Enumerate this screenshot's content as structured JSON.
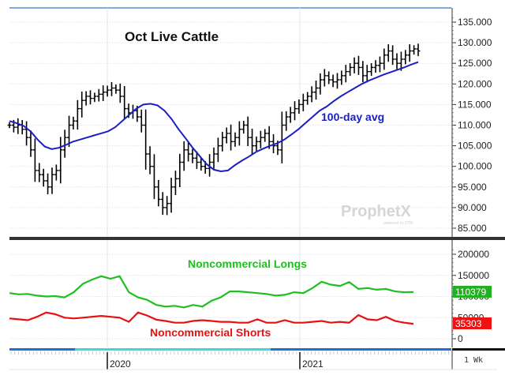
{
  "chart_data": [
    {
      "type": "ohlc",
      "title": "Oct Live Cattle",
      "panel": "price",
      "yaxis": {
        "ticks": [
          135,
          130,
          125,
          120,
          115,
          110,
          105,
          100,
          95,
          90,
          85
        ],
        "tick_labels": [
          "135.000",
          "130.000",
          "125.000",
          "120.000",
          "115.000",
          "110.000",
          "105.000",
          "100.000",
          "95.000",
          "90.000",
          "85.000"
        ],
        "ylim": [
          84,
          136
        ]
      },
      "xaxis": {
        "labels": [
          "2020",
          "2021"
        ],
        "period": "1 Wk"
      },
      "annotations": [
        {
          "text": "100-day avg",
          "color": "#1a1fc4"
        }
      ],
      "watermark": {
        "text": "ProphetX",
        "sub": "powered by DTN"
      },
      "series": [
        {
          "name": "Price (weekly bars)",
          "color": "#000000",
          "approx_close": [
            110,
            109.5,
            110,
            109,
            107,
            104,
            99,
            98,
            96.5,
            95,
            98,
            99,
            104,
            107,
            110,
            111,
            114,
            116,
            117,
            116.5,
            117,
            117.5,
            118,
            118.5,
            119,
            118.5,
            117,
            114,
            113,
            113.5,
            112,
            110,
            103,
            100,
            95,
            92,
            90,
            91,
            95,
            97,
            101,
            104,
            103,
            102,
            101,
            100,
            99.5,
            101,
            103,
            105,
            107,
            108,
            106,
            107,
            109,
            110,
            107,
            105,
            106,
            107,
            108,
            106,
            105,
            104,
            110,
            112,
            113,
            114,
            115,
            116,
            117,
            118,
            119,
            121,
            122,
            121,
            120.5,
            121,
            122,
            123,
            124,
            125,
            124,
            122,
            123,
            124,
            124.5,
            125,
            127,
            128,
            126,
            125,
            126,
            127,
            128,
            128.5,
            128
          ]
        },
        {
          "name": "100-day avg",
          "color": "#1a1fc4",
          "approx_values": [
            111,
            110.5,
            109.8,
            108.5,
            106.5,
            104.8,
            104.2,
            104.5,
            105.2,
            106,
            106.5,
            107,
            107.5,
            108,
            108.5,
            109.5,
            111,
            112.5,
            114,
            115,
            115.2,
            114.8,
            113.5,
            111.5,
            109,
            106.8,
            104.5,
            102.5,
            100.5,
            99.2,
            98.8,
            99,
            100.3,
            101.4,
            102.4,
            103.5,
            104.3,
            105,
            105.6,
            106.5,
            107.7,
            109,
            110.5,
            112,
            113.5,
            114.5,
            115.8,
            117,
            118,
            119,
            120,
            120.8,
            121.5,
            122.2,
            122.8,
            123.4,
            124,
            124.7,
            125.3
          ]
        }
      ]
    },
    {
      "type": "line",
      "panel": "cot",
      "yaxis": {
        "ticks": [
          200000,
          150000,
          100000,
          50000,
          0
        ],
        "tick_labels": [
          "200000",
          "150000",
          "100000",
          "50000",
          "0"
        ],
        "ylim": [
          -10000,
          215000
        ]
      },
      "series": [
        {
          "name": "Noncommercial Longs",
          "color": "#1fbf1f",
          "last_value": 110379,
          "approx_values": [
            108000,
            105000,
            106000,
            102000,
            100000,
            101000,
            98000,
            110000,
            130000,
            140000,
            148000,
            142000,
            148000,
            110000,
            98000,
            92000,
            80000,
            76000,
            78000,
            74000,
            80000,
            76000,
            90000,
            98000,
            112000,
            112000,
            110000,
            108000,
            106000,
            102000,
            104000,
            110000,
            108000,
            120000,
            135000,
            128000,
            125000,
            134000,
            118000,
            120000,
            116000,
            118000,
            112000,
            110000,
            110379
          ]
        },
        {
          "name": "Noncommercial Shorts",
          "color": "#e81010",
          "last_value": 35303,
          "approx_values": [
            48000,
            46000,
            44000,
            52000,
            62000,
            58000,
            50000,
            48000,
            50000,
            52000,
            54000,
            52000,
            50000,
            40000,
            62000,
            55000,
            45000,
            42000,
            38000,
            38000,
            42000,
            44000,
            42000,
            40000,
            40000,
            38000,
            38000,
            46000,
            38000,
            38000,
            44000,
            38000,
            38000,
            40000,
            42000,
            38000,
            40000,
            38000,
            56000,
            46000,
            44000,
            52000,
            42000,
            38000,
            35303
          ]
        }
      ]
    }
  ],
  "header": {
    "title": "Oct Live Cattle"
  },
  "price_panel": {
    "ma_label": "100-day avg",
    "y_ticks": [
      "135.000",
      "130.000",
      "125.000",
      "120.000",
      "115.000",
      "110.000",
      "105.000",
      "100.000",
      "95.000",
      "90.000",
      "85.000"
    ],
    "watermark": "ProphetX",
    "watermark_sub": "powered by DTN"
  },
  "cot_panel": {
    "longs_label": "Noncommercial Longs",
    "shorts_label": "Noncommercial Shorts",
    "y_ticks": [
      "200000",
      "150000",
      "100000",
      "50000",
      "0"
    ],
    "longs_badge": "110379",
    "shorts_badge": "35303",
    "longs_color": "#22b022",
    "shorts_color": "#ee1111"
  },
  "time_axis": {
    "labels": [
      "2020",
      "2021"
    ],
    "period": "1 Wk"
  }
}
